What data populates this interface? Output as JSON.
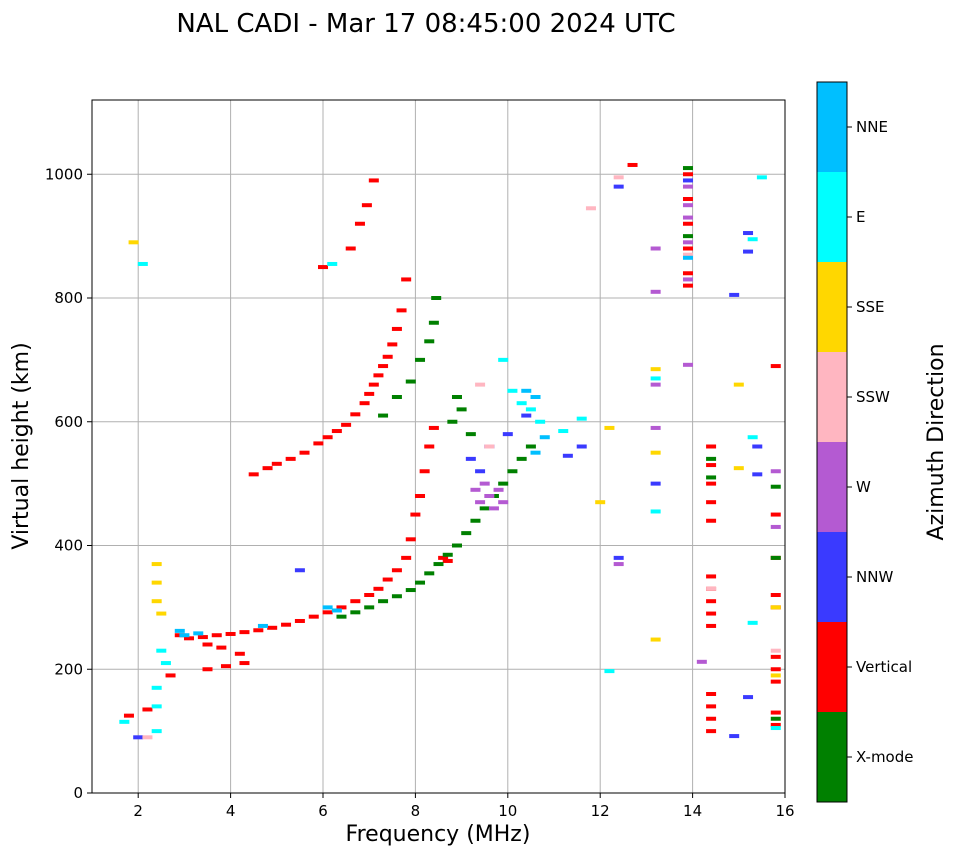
{
  "chart_data": {
    "type": "scatter",
    "title": "NAL CADI - Mar 17 08:45:00 2024 UTC",
    "xlabel": "Frequency (MHz)",
    "ylabel": "Virtual height (km)",
    "xlim": [
      1,
      16
    ],
    "ylim": [
      0,
      1120
    ],
    "xticks": [
      2,
      4,
      6,
      8,
      10,
      12,
      14,
      16
    ],
    "yticks": [
      0,
      200,
      400,
      600,
      800,
      1000
    ],
    "grid": true,
    "colorbar": {
      "label": "Azimuth Direction",
      "categories": [
        {
          "name": "X-mode",
          "color": "#008000"
        },
        {
          "name": "Vertical",
          "color": "#ff0000"
        },
        {
          "name": "NNW",
          "color": "#3a3aff"
        },
        {
          "name": "W",
          "color": "#b45ad2"
        },
        {
          "name": "SSW",
          "color": "#ffb6c1"
        },
        {
          "name": "SSE",
          "color": "#ffd700"
        },
        {
          "name": "E",
          "color": "#00ffff"
        },
        {
          "name": "NNE",
          "color": "#00bfff"
        }
      ]
    },
    "series": [
      {
        "name": "Vertical",
        "points": [
          [
            1.8,
            125
          ],
          [
            2.2,
            135
          ],
          [
            2.7,
            190
          ],
          [
            2.9,
            255
          ],
          [
            3.1,
            250
          ],
          [
            3.4,
            252
          ],
          [
            3.7,
            255
          ],
          [
            4.0,
            257
          ],
          [
            4.3,
            260
          ],
          [
            4.6,
            263
          ],
          [
            4.9,
            267
          ],
          [
            5.2,
            272
          ],
          [
            5.5,
            278
          ],
          [
            5.8,
            285
          ],
          [
            6.1,
            292
          ],
          [
            6.4,
            300
          ],
          [
            6.7,
            310
          ],
          [
            7.0,
            320
          ],
          [
            7.2,
            330
          ],
          [
            7.4,
            345
          ],
          [
            7.6,
            360
          ],
          [
            7.8,
            380
          ],
          [
            7.9,
            410
          ],
          [
            8.0,
            450
          ],
          [
            8.1,
            480
          ],
          [
            8.2,
            520
          ],
          [
            8.3,
            560
          ],
          [
            8.4,
            590
          ],
          [
            8.6,
            380
          ],
          [
            8.7,
            375
          ],
          [
            8.9,
            400
          ],
          [
            4.5,
            515
          ],
          [
            4.8,
            525
          ],
          [
            5.0,
            532
          ],
          [
            5.3,
            540
          ],
          [
            5.6,
            550
          ],
          [
            5.9,
            565
          ],
          [
            6.1,
            575
          ],
          [
            6.3,
            585
          ],
          [
            6.5,
            595
          ],
          [
            6.7,
            612
          ],
          [
            6.9,
            630
          ],
          [
            7.0,
            645
          ],
          [
            7.1,
            660
          ],
          [
            7.2,
            675
          ],
          [
            7.3,
            690
          ],
          [
            7.4,
            705
          ],
          [
            7.5,
            725
          ],
          [
            7.6,
            750
          ],
          [
            7.7,
            780
          ],
          [
            7.8,
            830
          ],
          [
            6.6,
            880
          ],
          [
            6.8,
            920
          ],
          [
            6.95,
            950
          ],
          [
            7.1,
            990
          ],
          [
            6.0,
            850
          ],
          [
            3.5,
            240
          ],
          [
            3.8,
            235
          ],
          [
            4.2,
            225
          ],
          [
            4.3,
            210
          ],
          [
            3.9,
            205
          ],
          [
            3.5,
            200
          ],
          [
            12.7,
            1015
          ],
          [
            13.9,
            1000
          ],
          [
            13.9,
            960
          ],
          [
            13.9,
            920
          ],
          [
            13.9,
            880
          ],
          [
            13.9,
            840
          ],
          [
            13.9,
            820
          ],
          [
            14.4,
            560
          ],
          [
            14.4,
            530
          ],
          [
            14.4,
            500
          ],
          [
            14.4,
            470
          ],
          [
            14.4,
            440
          ],
          [
            14.4,
            350
          ],
          [
            14.4,
            330
          ],
          [
            14.4,
            310
          ],
          [
            14.4,
            290
          ],
          [
            14.4,
            270
          ],
          [
            14.4,
            160
          ],
          [
            14.4,
            140
          ],
          [
            14.4,
            120
          ],
          [
            14.4,
            100
          ],
          [
            15.8,
            690
          ],
          [
            15.8,
            450
          ],
          [
            15.8,
            380
          ],
          [
            15.8,
            320
          ],
          [
            15.8,
            300
          ],
          [
            15.8,
            220
          ],
          [
            15.8,
            200
          ],
          [
            15.8,
            180
          ],
          [
            15.8,
            130
          ],
          [
            15.8,
            110
          ]
        ]
      },
      {
        "name": "X-mode",
        "points": [
          [
            6.4,
            285
          ],
          [
            6.7,
            292
          ],
          [
            7.0,
            300
          ],
          [
            7.3,
            310
          ],
          [
            7.6,
            318
          ],
          [
            7.9,
            328
          ],
          [
            8.1,
            340
          ],
          [
            8.3,
            355
          ],
          [
            8.5,
            370
          ],
          [
            8.7,
            385
          ],
          [
            8.9,
            400
          ],
          [
            9.1,
            420
          ],
          [
            9.3,
            440
          ],
          [
            9.5,
            460
          ],
          [
            9.7,
            480
          ],
          [
            9.9,
            500
          ],
          [
            10.1,
            520
          ],
          [
            10.3,
            540
          ],
          [
            10.5,
            560
          ],
          [
            7.3,
            610
          ],
          [
            7.6,
            640
          ],
          [
            7.9,
            665
          ],
          [
            8.1,
            700
          ],
          [
            8.3,
            730
          ],
          [
            8.4,
            760
          ],
          [
            8.45,
            800
          ],
          [
            8.9,
            640
          ],
          [
            9.0,
            620
          ],
          [
            8.8,
            600
          ],
          [
            9.2,
            580
          ],
          [
            13.9,
            1010
          ],
          [
            13.9,
            900
          ],
          [
            14.4,
            540
          ],
          [
            14.4,
            510
          ],
          [
            15.8,
            495
          ],
          [
            15.8,
            380
          ],
          [
            15.8,
            120
          ]
        ]
      },
      {
        "name": "NNW",
        "points": [
          [
            2.0,
            90
          ],
          [
            5.5,
            360
          ],
          [
            9.4,
            520
          ],
          [
            9.2,
            540
          ],
          [
            9.6,
            560
          ],
          [
            10.0,
            580
          ],
          [
            10.4,
            610
          ],
          [
            11.6,
            560
          ],
          [
            11.3,
            545
          ],
          [
            12.4,
            980
          ],
          [
            12.4,
            380
          ],
          [
            13.2,
            500
          ],
          [
            13.9,
            990
          ],
          [
            15.2,
            905
          ],
          [
            15.2,
            875
          ],
          [
            14.9,
            805
          ],
          [
            15.4,
            560
          ],
          [
            15.4,
            515
          ],
          [
            15.2,
            155
          ],
          [
            14.9,
            92
          ]
        ]
      },
      {
        "name": "W",
        "points": [
          [
            9.4,
            470
          ],
          [
            9.6,
            480
          ],
          [
            9.8,
            490
          ],
          [
            9.5,
            500
          ],
          [
            9.7,
            460
          ],
          [
            9.3,
            490
          ],
          [
            9.9,
            470
          ],
          [
            13.9,
            980
          ],
          [
            13.9,
            950
          ],
          [
            13.9,
            930
          ],
          [
            13.9,
            890
          ],
          [
            13.9,
            830
          ],
          [
            12.4,
            370
          ],
          [
            13.2,
            880
          ],
          [
            13.2,
            810
          ],
          [
            13.2,
            660
          ],
          [
            13.2,
            590
          ],
          [
            14.2,
            212
          ],
          [
            13.9,
            692
          ],
          [
            15.8,
            520
          ],
          [
            15.8,
            430
          ]
        ]
      },
      {
        "name": "SSW",
        "points": [
          [
            9.4,
            660
          ],
          [
            9.6,
            560
          ],
          [
            11.8,
            945
          ],
          [
            12.4,
            995
          ],
          [
            13.9,
            870
          ],
          [
            14.4,
            330
          ],
          [
            15.8,
            230
          ],
          [
            2.2,
            90
          ]
        ]
      },
      {
        "name": "SSE",
        "points": [
          [
            1.9,
            890
          ],
          [
            2.4,
            370
          ],
          [
            2.4,
            340
          ],
          [
            2.4,
            310
          ],
          [
            2.5,
            290
          ],
          [
            13.2,
            685
          ],
          [
            13.2,
            550
          ],
          [
            13.2,
            248
          ],
          [
            12.0,
            470
          ],
          [
            12.2,
            590
          ],
          [
            15.0,
            660
          ],
          [
            15.0,
            525
          ],
          [
            15.8,
            300
          ],
          [
            15.8,
            190
          ]
        ]
      },
      {
        "name": "E",
        "points": [
          [
            2.1,
            855
          ],
          [
            1.7,
            115
          ],
          [
            2.4,
            170
          ],
          [
            2.4,
            140
          ],
          [
            2.4,
            100
          ],
          [
            2.5,
            230
          ],
          [
            2.6,
            210
          ],
          [
            6.2,
            855
          ],
          [
            9.9,
            700
          ],
          [
            10.1,
            650
          ],
          [
            10.3,
            630
          ],
          [
            10.5,
            620
          ],
          [
            10.7,
            600
          ],
          [
            11.2,
            585
          ],
          [
            11.6,
            605
          ],
          [
            15.3,
            575
          ],
          [
            15.3,
            275
          ],
          [
            15.3,
            895
          ],
          [
            15.5,
            995
          ],
          [
            13.2,
            455
          ],
          [
            13.2,
            670
          ],
          [
            12.2,
            197
          ],
          [
            15.8,
            105
          ]
        ]
      },
      {
        "name": "NNE",
        "points": [
          [
            10.4,
            650
          ],
          [
            10.6,
            640
          ],
          [
            10.8,
            575
          ],
          [
            10.6,
            550
          ],
          [
            6.1,
            300
          ],
          [
            6.3,
            295
          ],
          [
            3.0,
            255
          ],
          [
            2.9,
            262
          ],
          [
            3.3,
            258
          ],
          [
            4.7,
            270
          ],
          [
            13.9,
            865
          ]
        ]
      }
    ]
  }
}
